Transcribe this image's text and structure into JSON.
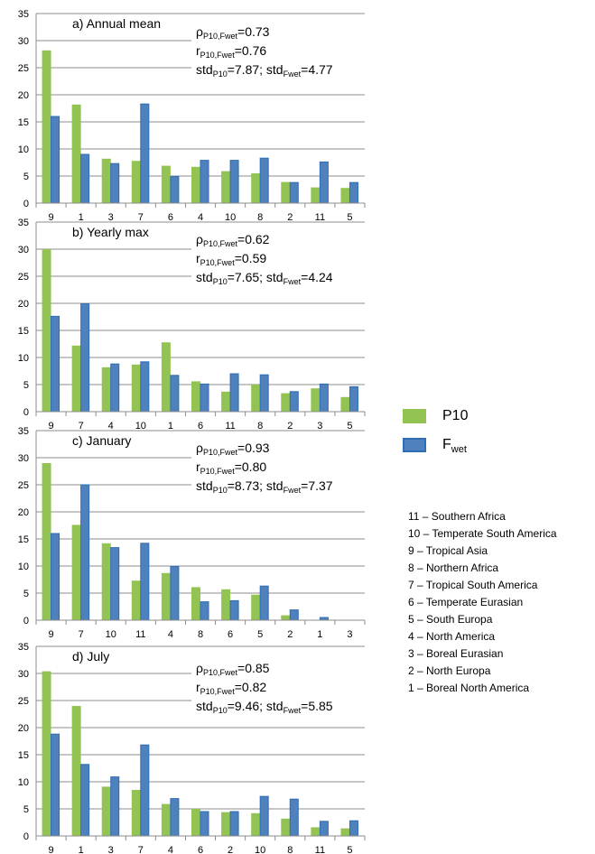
{
  "colors": {
    "p10": "#92c353",
    "fwet": "#4f81bd",
    "fwet_border": "#2f6db4",
    "grid": "#8c8c8c"
  },
  "legend": {
    "p10": "P10",
    "fwet_main": "F",
    "fwet_sub": "wet"
  },
  "regions": [
    "11 – Southern Africa",
    "10 – Temperate South America",
    "9 – Tropical Asia",
    "8 – Northern Africa",
    "7 – Tropical South America",
    "6 – Temperate Eurasian",
    "5 – South Europa",
    "4 – North America",
    "3 – Boreal Eurasian",
    "2 – North Europa",
    "1 – Boreal North America"
  ],
  "stat_labels": {
    "rho": "ρ",
    "r": "r",
    "std": "std",
    "sub_pair": "P10,Fwet",
    "sub_p10": "P10",
    "sub_fwet": "Fwet",
    "sep": "; ",
    "eq": "="
  },
  "panels": [
    {
      "stats": {
        "rho": "0.73",
        "r": "0.76",
        "std_p10": "7.87",
        "std_fwet": "4.77"
      }
    },
    {
      "stats": {
        "rho": "0.62",
        "r": "0.59",
        "std_p10": "7.65",
        "std_fwet": "4.24"
      }
    },
    {
      "stats": {
        "rho": "0.93",
        "r": "0.80",
        "std_p10": "8.73",
        "std_fwet": "7.37"
      }
    },
    {
      "stats": {
        "rho": "0.85",
        "r": "0.82",
        "std_p10": "9.46",
        "std_fwet": "5.85"
      }
    }
  ],
  "chart_data": [
    {
      "type": "bar",
      "title": "a) Annual mean",
      "categories": [
        "9",
        "1",
        "3",
        "7",
        "6",
        "4",
        "10",
        "8",
        "2",
        "11",
        "5"
      ],
      "series": [
        {
          "name": "P10",
          "values": [
            28.2,
            18.2,
            8.2,
            7.8,
            6.9,
            6.7,
            5.9,
            5.5,
            3.9,
            2.9,
            2.8
          ]
        },
        {
          "name": "Fwet",
          "values": [
            16.0,
            9.0,
            7.3,
            18.3,
            4.9,
            7.9,
            7.9,
            8.3,
            3.8,
            7.6,
            3.8
          ]
        }
      ],
      "ylim": [
        0,
        35
      ],
      "yticks": [
        0,
        5,
        10,
        15,
        20,
        25,
        30,
        35
      ],
      "grid": true
    },
    {
      "type": "bar",
      "title": "b) Yearly max",
      "categories": [
        "9",
        "7",
        "4",
        "10",
        "1",
        "6",
        "11",
        "8",
        "2",
        "3",
        "5"
      ],
      "series": [
        {
          "name": "P10",
          "values": [
            30.0,
            12.2,
            8.2,
            8.7,
            12.8,
            5.6,
            3.7,
            5.0,
            3.4,
            4.3,
            2.7
          ]
        },
        {
          "name": "Fwet",
          "values": [
            17.6,
            19.9,
            8.8,
            9.2,
            6.7,
            5.1,
            7.0,
            6.8,
            3.7,
            5.1,
            4.6
          ]
        }
      ],
      "ylim": [
        0,
        35
      ],
      "yticks": [
        0,
        5,
        10,
        15,
        20,
        25,
        30,
        35
      ],
      "grid": true
    },
    {
      "type": "bar",
      "title": "c) January",
      "categories": [
        "9",
        "7",
        "10",
        "11",
        "4",
        "8",
        "6",
        "5",
        "2",
        "1",
        "3"
      ],
      "series": [
        {
          "name": "P10",
          "values": [
            29.0,
            17.6,
            14.2,
            7.3,
            8.7,
            6.1,
            5.7,
            4.7,
            0.9,
            0.0,
            0.0
          ]
        },
        {
          "name": "Fwet",
          "values": [
            16.0,
            25.0,
            13.4,
            14.2,
            9.9,
            3.4,
            3.6,
            6.3,
            1.9,
            0.5,
            0.0
          ]
        }
      ],
      "ylim": [
        0,
        35
      ],
      "yticks": [
        0,
        5,
        10,
        15,
        20,
        25,
        30,
        35
      ],
      "grid": true
    },
    {
      "type": "bar",
      "title": "d) July",
      "categories": [
        "9",
        "1",
        "3",
        "7",
        "4",
        "6",
        "2",
        "10",
        "8",
        "11",
        "5"
      ],
      "series": [
        {
          "name": "P10",
          "values": [
            30.4,
            24.0,
            9.1,
            8.5,
            5.9,
            5.0,
            4.4,
            4.2,
            3.2,
            1.6,
            1.4
          ]
        },
        {
          "name": "Fwet",
          "values": [
            18.8,
            13.2,
            10.9,
            16.8,
            6.9,
            4.5,
            4.5,
            7.3,
            6.8,
            2.7,
            2.8
          ]
        }
      ],
      "ylim": [
        0,
        35
      ],
      "yticks": [
        0,
        5,
        10,
        15,
        20,
        25,
        30,
        35
      ],
      "grid": true
    }
  ]
}
